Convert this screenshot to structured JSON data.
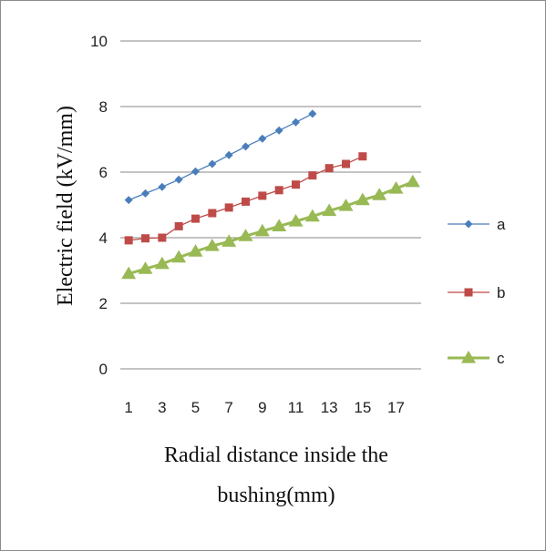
{
  "chart_data": {
    "type": "line",
    "title": "",
    "xlabel_lines": [
      "Radial distance inside the",
      "bushing(mm)"
    ],
    "ylabel": "Electric field (kV/mm)",
    "ylim": [
      0,
      10
    ],
    "yticks": [
      0,
      2,
      4,
      6,
      8,
      10
    ],
    "x_categories": [
      1,
      2,
      3,
      4,
      5,
      6,
      7,
      8,
      9,
      10,
      11,
      12,
      13,
      14,
      15,
      16,
      17,
      18
    ],
    "xtick_labels": [
      1,
      3,
      5,
      7,
      9,
      11,
      13,
      15,
      17
    ],
    "grid": "horizontal",
    "legend_position": "right",
    "series": [
      {
        "name": "a",
        "color": "#4a7ebb",
        "marker": "diamond",
        "values": [
          5.15,
          5.35,
          5.55,
          5.77,
          6.02,
          6.25,
          6.52,
          6.78,
          7.02,
          7.27,
          7.52,
          7.78
        ]
      },
      {
        "name": "b",
        "color": "#be4b48",
        "marker": "square",
        "values": [
          3.92,
          3.98,
          4.0,
          4.35,
          4.58,
          4.75,
          4.92,
          5.1,
          5.28,
          5.45,
          5.62,
          5.9,
          6.12,
          6.25,
          6.48
        ]
      },
      {
        "name": "c",
        "color": "#98b954",
        "marker": "triangle",
        "values": [
          2.9,
          3.05,
          3.2,
          3.4,
          3.58,
          3.75,
          3.88,
          4.05,
          4.2,
          4.35,
          4.5,
          4.65,
          4.82,
          4.97,
          5.15,
          5.3,
          5.5,
          5.7
        ]
      }
    ]
  }
}
